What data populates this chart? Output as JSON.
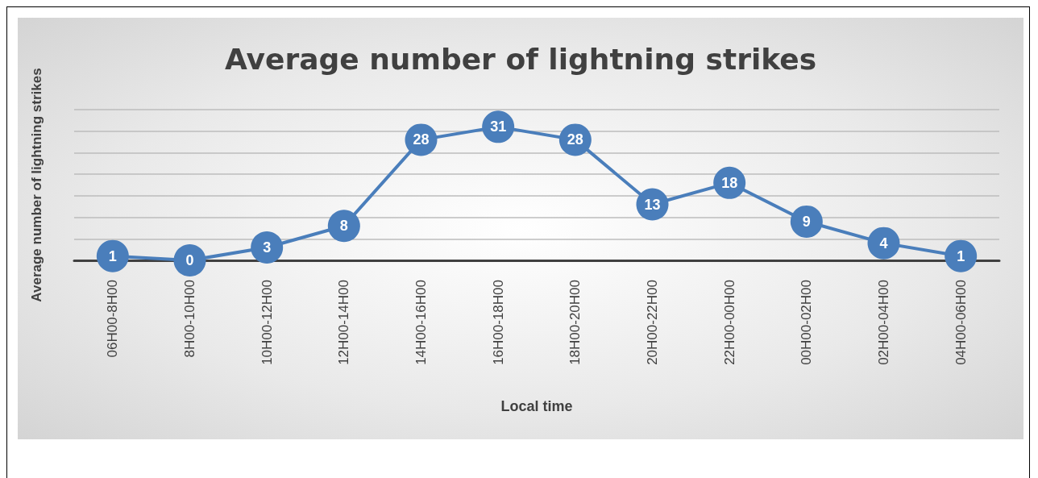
{
  "chart_data": {
    "type": "line",
    "title": "Average number of lightning strikes",
    "xlabel": "Local time",
    "ylabel": "Average number of lightning strikes",
    "categories": [
      "06H00-8H00",
      "8H00-10H00",
      "10H00-12H00",
      "12H00-14H00",
      "14H00-16H00",
      "16H00-18H00",
      "18H00-20H00",
      "20H00-22H00",
      "22H00-00H00",
      "00H00-02H00",
      "02H00-04H00",
      "04H00-06H00"
    ],
    "series": [
      {
        "color": "#4a7ebb",
        "values": [
          1,
          0,
          3,
          8,
          28,
          31,
          28,
          13,
          18,
          9,
          4,
          1
        ]
      }
    ],
    "ylim": [
      0,
      35
    ],
    "yticks": [
      {
        "value": 0,
        "label": null
      },
      {
        "value": 5,
        "label": null
      },
      {
        "value": 10,
        "label": null
      },
      {
        "value": 15,
        "label": null
      },
      {
        "value": 20,
        "label": null
      },
      {
        "value": 25,
        "label": null
      },
      {
        "value": 30,
        "label": null
      },
      {
        "value": 35,
        "label": null
      }
    ],
    "tick_labels": "x",
    "grid": "y",
    "data_labels": true,
    "marker": "circle",
    "line_style": "solid"
  }
}
